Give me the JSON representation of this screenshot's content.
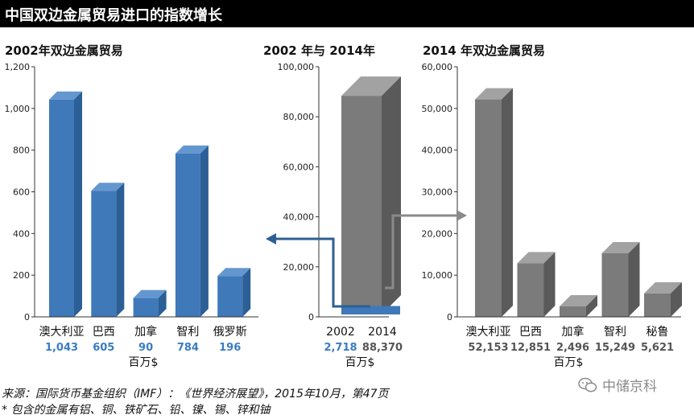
{
  "header": {
    "title": "中国双边金属贸易进口的指数增长"
  },
  "colors": {
    "blue_front": "#3f79b9",
    "blue_side": "#2b5f95",
    "blue_top": "#6497cf",
    "gray_front": "#7b7b7b",
    "gray_side": "#5a5a5a",
    "gray_top": "#a2a2a2",
    "blue_text": "#3a7cc2",
    "gray_text": "#555555"
  },
  "chart_data": [
    {
      "type": "bar",
      "title": "2002年双边金属贸易",
      "categories": [
        "澳大利亚",
        "巴西",
        "加拿",
        "智利",
        "俄罗斯"
      ],
      "values": [
        1043,
        605,
        90,
        784,
        196
      ],
      "value_labels": [
        "1,043",
        "605",
        "90",
        "784",
        "196"
      ],
      "ylim": [
        0,
        1200
      ],
      "yticks": [
        "0",
        "200",
        "400",
        "600",
        "800",
        "1,000",
        "1,200"
      ],
      "unit_label": "百万$",
      "color": "blue"
    },
    {
      "type": "bar",
      "title": "2002 年与 2014年",
      "categories": [
        "2002",
        "2014"
      ],
      "values": [
        2718,
        88370
      ],
      "value_labels": [
        "2,718",
        "88,370"
      ],
      "ylim": [
        0,
        100000
      ],
      "yticks": [
        "0",
        "20,000",
        "40,000",
        "60,000",
        "80,000",
        "100,000"
      ],
      "unit_label": "百万$"
    },
    {
      "type": "bar",
      "title": "2014 年双边金属贸易",
      "categories": [
        "澳大利亚",
        "巴西",
        "加拿",
        "智利",
        "秘鲁"
      ],
      "values": [
        52153,
        12851,
        2496,
        15249,
        5621
      ],
      "value_labels": [
        "52,153",
        "12,851",
        "2,496",
        "15,249",
        "5,621"
      ],
      "ylim": [
        0,
        60000
      ],
      "yticks": [
        "0",
        "10,000",
        "20,000",
        "30,000",
        "40,000",
        "50,000",
        "60,000"
      ],
      "unit_label": "百万$",
      "color": "gray"
    }
  ],
  "footer": {
    "source": "来源：国际货币基金组织（IMF）：《世界经济展望》，2015年10月，第47页",
    "note": "* 包含的金属有铝、铜、铁矿石、铅、镍、锡、锌和铀"
  },
  "watermark": {
    "text": "中储京科"
  }
}
